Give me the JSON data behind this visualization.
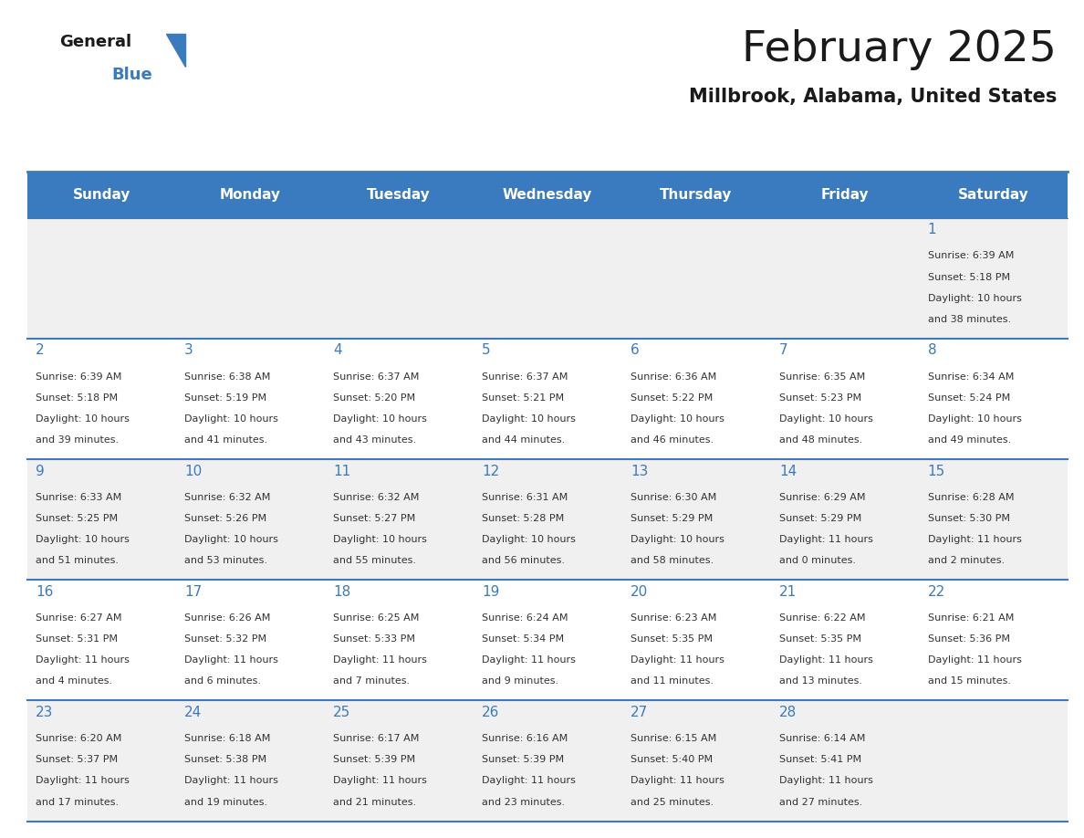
{
  "title": "February 2025",
  "subtitle": "Millbrook, Alabama, United States",
  "header_color": "#3a7abf",
  "header_text_color": "#ffffff",
  "cell_bg_even": "#f0f0f0",
  "cell_bg_odd": "#ffffff",
  "cell_border_color": "#3a7abf",
  "day_number_color": "#3a7abf",
  "cell_text_color": "#333333",
  "background_color": "#ffffff",
  "days_of_week": [
    "Sunday",
    "Monday",
    "Tuesday",
    "Wednesday",
    "Thursday",
    "Friday",
    "Saturday"
  ],
  "weeks": [
    [
      null,
      null,
      null,
      null,
      null,
      null,
      1
    ],
    [
      2,
      3,
      4,
      5,
      6,
      7,
      8
    ],
    [
      9,
      10,
      11,
      12,
      13,
      14,
      15
    ],
    [
      16,
      17,
      18,
      19,
      20,
      21,
      22
    ],
    [
      23,
      24,
      25,
      26,
      27,
      28,
      null
    ]
  ],
  "cell_data": {
    "1": {
      "sunrise": "6:39 AM",
      "sunset": "5:18 PM",
      "daylight_h": "10 hours",
      "daylight_m": "and 38 minutes."
    },
    "2": {
      "sunrise": "6:39 AM",
      "sunset": "5:18 PM",
      "daylight_h": "10 hours",
      "daylight_m": "and 39 minutes."
    },
    "3": {
      "sunrise": "6:38 AM",
      "sunset": "5:19 PM",
      "daylight_h": "10 hours",
      "daylight_m": "and 41 minutes."
    },
    "4": {
      "sunrise": "6:37 AM",
      "sunset": "5:20 PM",
      "daylight_h": "10 hours",
      "daylight_m": "and 43 minutes."
    },
    "5": {
      "sunrise": "6:37 AM",
      "sunset": "5:21 PM",
      "daylight_h": "10 hours",
      "daylight_m": "and 44 minutes."
    },
    "6": {
      "sunrise": "6:36 AM",
      "sunset": "5:22 PM",
      "daylight_h": "10 hours",
      "daylight_m": "and 46 minutes."
    },
    "7": {
      "sunrise": "6:35 AM",
      "sunset": "5:23 PM",
      "daylight_h": "10 hours",
      "daylight_m": "and 48 minutes."
    },
    "8": {
      "sunrise": "6:34 AM",
      "sunset": "5:24 PM",
      "daylight_h": "10 hours",
      "daylight_m": "and 49 minutes."
    },
    "9": {
      "sunrise": "6:33 AM",
      "sunset": "5:25 PM",
      "daylight_h": "10 hours",
      "daylight_m": "and 51 minutes."
    },
    "10": {
      "sunrise": "6:32 AM",
      "sunset": "5:26 PM",
      "daylight_h": "10 hours",
      "daylight_m": "and 53 minutes."
    },
    "11": {
      "sunrise": "6:32 AM",
      "sunset": "5:27 PM",
      "daylight_h": "10 hours",
      "daylight_m": "and 55 minutes."
    },
    "12": {
      "sunrise": "6:31 AM",
      "sunset": "5:28 PM",
      "daylight_h": "10 hours",
      "daylight_m": "and 56 minutes."
    },
    "13": {
      "sunrise": "6:30 AM",
      "sunset": "5:29 PM",
      "daylight_h": "10 hours",
      "daylight_m": "and 58 minutes."
    },
    "14": {
      "sunrise": "6:29 AM",
      "sunset": "5:29 PM",
      "daylight_h": "11 hours",
      "daylight_m": "and 0 minutes."
    },
    "15": {
      "sunrise": "6:28 AM",
      "sunset": "5:30 PM",
      "daylight_h": "11 hours",
      "daylight_m": "and 2 minutes."
    },
    "16": {
      "sunrise": "6:27 AM",
      "sunset": "5:31 PM",
      "daylight_h": "11 hours",
      "daylight_m": "and 4 minutes."
    },
    "17": {
      "sunrise": "6:26 AM",
      "sunset": "5:32 PM",
      "daylight_h": "11 hours",
      "daylight_m": "and 6 minutes."
    },
    "18": {
      "sunrise": "6:25 AM",
      "sunset": "5:33 PM",
      "daylight_h": "11 hours",
      "daylight_m": "and 7 minutes."
    },
    "19": {
      "sunrise": "6:24 AM",
      "sunset": "5:34 PM",
      "daylight_h": "11 hours",
      "daylight_m": "and 9 minutes."
    },
    "20": {
      "sunrise": "6:23 AM",
      "sunset": "5:35 PM",
      "daylight_h": "11 hours",
      "daylight_m": "and 11 minutes."
    },
    "21": {
      "sunrise": "6:22 AM",
      "sunset": "5:35 PM",
      "daylight_h": "11 hours",
      "daylight_m": "and 13 minutes."
    },
    "22": {
      "sunrise": "6:21 AM",
      "sunset": "5:36 PM",
      "daylight_h": "11 hours",
      "daylight_m": "and 15 minutes."
    },
    "23": {
      "sunrise": "6:20 AM",
      "sunset": "5:37 PM",
      "daylight_h": "11 hours",
      "daylight_m": "and 17 minutes."
    },
    "24": {
      "sunrise": "6:18 AM",
      "sunset": "5:38 PM",
      "daylight_h": "11 hours",
      "daylight_m": "and 19 minutes."
    },
    "25": {
      "sunrise": "6:17 AM",
      "sunset": "5:39 PM",
      "daylight_h": "11 hours",
      "daylight_m": "and 21 minutes."
    },
    "26": {
      "sunrise": "6:16 AM",
      "sunset": "5:39 PM",
      "daylight_h": "11 hours",
      "daylight_m": "and 23 minutes."
    },
    "27": {
      "sunrise": "6:15 AM",
      "sunset": "5:40 PM",
      "daylight_h": "11 hours",
      "daylight_m": "and 25 minutes."
    },
    "28": {
      "sunrise": "6:14 AM",
      "sunset": "5:41 PM",
      "daylight_h": "11 hours",
      "daylight_m": "and 27 minutes."
    }
  },
  "logo_general_color": "#1a1a1a",
  "logo_blue_color": "#3a7abf",
  "title_color": "#1a1a1a",
  "subtitle_color": "#1a1a1a"
}
